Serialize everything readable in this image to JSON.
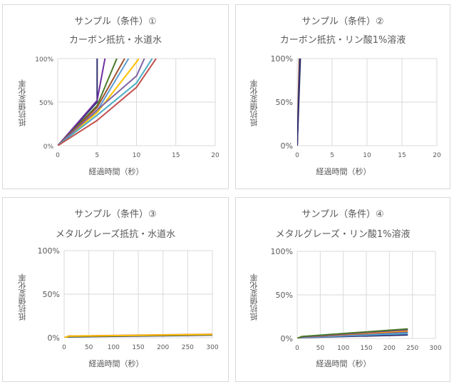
{
  "chart_data": [
    {
      "type": "line",
      "title": "サンプル（条件）①",
      "subtitle": "カーボン抵抗・水道水",
      "xlabel": "経過時間（秒）",
      "ylabel": "抵抗値変化率",
      "xlim": [
        0,
        20
      ],
      "ylim": [
        0,
        1
      ],
      "xticks": [
        "0",
        "5",
        "10",
        "15",
        "20"
      ],
      "yticks": [
        "0%",
        "50%",
        "100%"
      ],
      "grid": true,
      "series": [
        {
          "color": "#2f2f6f",
          "x": [
            0,
            5,
            5.0
          ],
          "y": [
            0,
            0.5,
            1.0
          ]
        },
        {
          "color": "#7030a0",
          "x": [
            0,
            5,
            6.0
          ],
          "y": [
            0,
            0.52,
            1.0
          ]
        },
        {
          "color": "#4a7a2a",
          "x": [
            0,
            5,
            7.5
          ],
          "y": [
            0,
            0.46,
            1.0
          ]
        },
        {
          "color": "#a0522d",
          "x": [
            0,
            5,
            8.5
          ],
          "y": [
            0,
            0.44,
            1.0
          ]
        },
        {
          "color": "#5b9bd5",
          "x": [
            0,
            5,
            9.0
          ],
          "y": [
            0,
            0.4,
            1.0
          ]
        },
        {
          "color": "#ffc000",
          "x": [
            0,
            5,
            10,
            10.3
          ],
          "y": [
            0,
            0.38,
            0.96,
            1.0
          ]
        },
        {
          "color": "#8064a2",
          "x": [
            0,
            5,
            10,
            11.0
          ],
          "y": [
            0,
            0.41,
            0.8,
            1.0
          ]
        },
        {
          "color": "#4bacc6",
          "x": [
            0,
            5,
            10,
            12.0
          ],
          "y": [
            0,
            0.35,
            0.72,
            1.0
          ]
        },
        {
          "color": "#c0504d",
          "x": [
            0,
            5,
            10,
            12.5
          ],
          "y": [
            0,
            0.29,
            0.67,
            1.0
          ]
        }
      ]
    },
    {
      "type": "line",
      "title": "サンプル（条件）②",
      "subtitle": "カーボン抵抗・リン酸1%溶液",
      "xlabel": "経過時間（秒）",
      "ylabel": "抵抗値変化率",
      "xlim": [
        0,
        20
      ],
      "ylim": [
        0,
        1
      ],
      "xticks": [
        "0",
        "5",
        "10",
        "15",
        "20"
      ],
      "yticks": [
        "0%",
        "50%",
        "100%"
      ],
      "grid": true,
      "series": [
        {
          "color": "#c0504d",
          "x": [
            0,
            0.3
          ],
          "y": [
            0,
            1.0
          ]
        },
        {
          "color": "#4a7a2a",
          "x": [
            0,
            0.35
          ],
          "y": [
            0,
            1.0
          ]
        },
        {
          "color": "#7030a0",
          "x": [
            0,
            0.4
          ],
          "y": [
            0,
            1.0
          ]
        },
        {
          "color": "#2f2f6f",
          "x": [
            0,
            0.45
          ],
          "y": [
            0,
            1.0
          ]
        }
      ]
    },
    {
      "type": "line",
      "title": "サンプル（条件）③",
      "subtitle": "メタルグレーズ抵抗・水道水",
      "xlabel": "経過時間（秒）",
      "ylabel": "抵抗値変化率",
      "xlim": [
        0,
        300
      ],
      "ylim": [
        0,
        1
      ],
      "xticks": [
        "0",
        "50",
        "100",
        "150",
        "200",
        "250",
        "300"
      ],
      "yticks": [
        "0%",
        "50%",
        "100%"
      ],
      "grid": true,
      "series": [
        {
          "color": "#2f2f6f",
          "x": [
            0,
            10,
            300
          ],
          "y": [
            0,
            0.01,
            0.03
          ]
        },
        {
          "color": "#4a7a2a",
          "x": [
            0,
            10,
            300
          ],
          "y": [
            0,
            0.015,
            0.035
          ]
        },
        {
          "color": "#c0504d",
          "x": [
            0,
            10,
            300
          ],
          "y": [
            0,
            0.02,
            0.04
          ]
        },
        {
          "color": "#ffc000",
          "x": [
            0,
            10,
            300
          ],
          "y": [
            0,
            0.018,
            0.038
          ]
        }
      ]
    },
    {
      "type": "line",
      "title": "サンプル（条件）④",
      "subtitle": "メタルグレーズ・リン酸1%溶液",
      "xlabel": "経過時間（秒）",
      "ylabel": "抵抗値変化率",
      "xlim": [
        0,
        300
      ],
      "ylim": [
        0,
        1
      ],
      "xticks": [
        "0",
        "50",
        "100",
        "150",
        "200",
        "250",
        "300"
      ],
      "yticks": [
        "0%",
        "50%",
        "100%"
      ],
      "grid": true,
      "series": [
        {
          "color": "#2f2f6f",
          "x": [
            0,
            10,
            240
          ],
          "y": [
            0,
            0.01,
            0.04
          ]
        },
        {
          "color": "#5b9bd5",
          "x": [
            0,
            10,
            240
          ],
          "y": [
            0,
            0.012,
            0.055
          ]
        },
        {
          "color": "#4bacc6",
          "x": [
            0,
            10,
            240
          ],
          "y": [
            0,
            0.014,
            0.065
          ]
        },
        {
          "color": "#8064a2",
          "x": [
            0,
            10,
            240
          ],
          "y": [
            0,
            0.016,
            0.075
          ]
        },
        {
          "color": "#c0504d",
          "x": [
            0,
            10,
            240
          ],
          "y": [
            0,
            0.018,
            0.085
          ]
        },
        {
          "color": "#ffc000",
          "x": [
            0,
            10,
            240
          ],
          "y": [
            0,
            0.02,
            0.09
          ]
        },
        {
          "color": "#7030a0",
          "x": [
            0,
            10,
            240
          ],
          "y": [
            0,
            0.02,
            0.1
          ]
        },
        {
          "color": "#4a7a2a",
          "x": [
            0,
            10,
            240
          ],
          "y": [
            0,
            0.022,
            0.11
          ]
        }
      ]
    }
  ]
}
